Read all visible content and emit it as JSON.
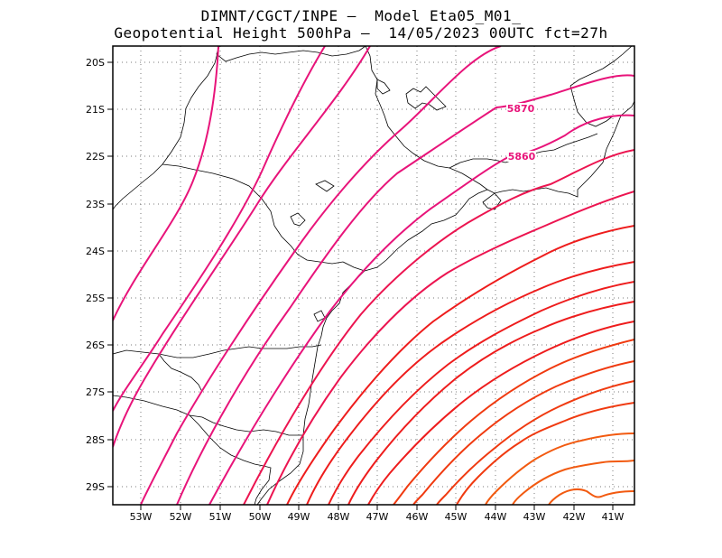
{
  "header": {
    "line1": "DIMNT/CGCT/INPE —  Model Eta05_M01_",
    "line2": "Geopotential Height 500hPa —  14/05/2023 00UTC fct=27h"
  },
  "axes": {
    "lon_labels": [
      "53W",
      "52W",
      "51W",
      "50W",
      "49W",
      "48W",
      "47W",
      "46W",
      "45W",
      "44W",
      "43W",
      "42W",
      "41W"
    ],
    "lat_labels": [
      "20S",
      "21S",
      "22S",
      "23S",
      "24S",
      "25S",
      "26S",
      "27S",
      "28S",
      "29S"
    ]
  },
  "contours": {
    "labels": [
      "5870",
      "5860"
    ],
    "colors": {
      "magenta": "#e8147a",
      "red_magenta": "#ec1450",
      "red": "#ee1c1c",
      "red_orange": "#f03a10",
      "orange": "#f25a10",
      "boundary": "#000000"
    }
  }
}
